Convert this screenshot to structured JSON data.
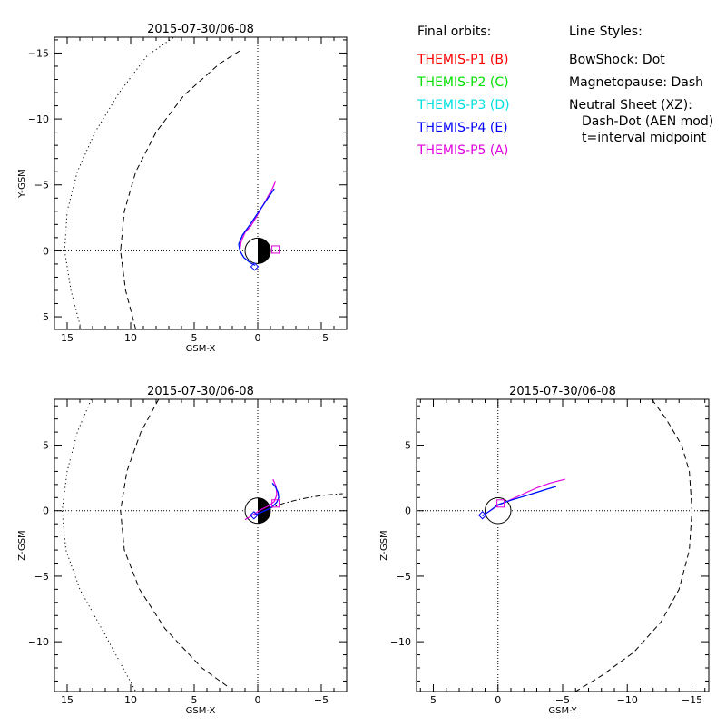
{
  "legend": {
    "orbits_title": "Final orbits:",
    "probes": [
      {
        "label": "THEMIS-P1 (B)",
        "color": "#ff0000"
      },
      {
        "label": "THEMIS-P2 (C)",
        "color": "#00e000"
      },
      {
        "label": "THEMIS-P3 (D)",
        "color": "#00e0e0"
      },
      {
        "label": "THEMIS-P4 (E)",
        "color": "#0000ff"
      },
      {
        "label": "THEMIS-P5 (A)",
        "color": "#e000e0"
      }
    ],
    "styles_title": "Line Styles:",
    "styles": [
      "BowShock: Dot",
      "Magnetopause: Dash",
      "Neutral Sheet (XZ):",
      "Dash-Dot (AEN mod)",
      "t=interval midpoint"
    ]
  },
  "chart_data": [
    {
      "type": "line",
      "title": "2015-07-30/06-08",
      "xlabel": "GSM-X",
      "ylabel": "Y-GSM",
      "xlim": [
        16,
        -7
      ],
      "ylim": [
        5.96,
        -16.2
      ],
      "xticks": [
        15,
        10,
        5,
        0,
        -5
      ],
      "yticks": [
        -15,
        -10,
        -5,
        0,
        5
      ],
      "xticklabels": [
        "15",
        "10",
        "5",
        "0",
        "−5"
      ],
      "yticklabels": [
        "−15",
        "−10",
        "−5",
        "0",
        "5"
      ],
      "series": [
        {
          "style": "bowshock",
          "color": "#000000",
          "x": [
            13.9,
            14.7,
            15.2,
            15.0,
            14.2,
            12.8,
            10.9,
            8.7,
            6.6
          ],
          "y": [
            5.96,
            3.0,
            0.0,
            -3.0,
            -6.0,
            -9.0,
            -12.0,
            -14.8,
            -16.2
          ]
        },
        {
          "style": "magnetopause",
          "color": "#000000",
          "x": [
            9.6,
            10.4,
            10.8,
            10.5,
            9.6,
            8.0,
            5.8,
            3.0,
            1.2
          ],
          "y": [
            5.96,
            3.0,
            0.0,
            -3.0,
            -6.0,
            -9.0,
            -11.8,
            -14.2,
            -15.3
          ]
        },
        {
          "name": "THEMIS-P5 (A)",
          "color": "#e000e0",
          "x": [
            1.4,
            1.3,
            1.0,
            0.6,
            0.15,
            -0.5,
            -1.2,
            -1.4
          ],
          "y": [
            -0.1,
            -0.7,
            -1.4,
            -1.8,
            -2.5,
            -3.6,
            -4.8,
            -5.3
          ]
        },
        {
          "name": "THEMIS-P3 (D)",
          "color": "#00e0e0",
          "x": [
            0.2,
            0.6,
            1.1,
            1.4,
            1.5,
            1.2,
            0.6,
            -0.1,
            -0.8,
            -1.3
          ],
          "y": [
            1.1,
            0.9,
            0.5,
            0.0,
            -0.5,
            -1.2,
            -2.0,
            -3.0,
            -4.0,
            -4.7
          ]
        },
        {
          "name": "THEMIS-P4 (E)",
          "color": "#0000ff",
          "x": [
            0.2,
            0.6,
            1.1,
            1.4,
            1.5,
            1.2,
            0.6,
            -0.1,
            -0.8,
            -1.3
          ],
          "y": [
            1.1,
            0.9,
            0.5,
            0.0,
            -0.5,
            -1.2,
            -2.0,
            -3.0,
            -4.0,
            -4.7
          ]
        }
      ],
      "markers": [
        {
          "shape": "diamond",
          "color": "#0000ff",
          "x": 0.25,
          "y": 1.2
        },
        {
          "shape": "square",
          "color": "#e000e0",
          "x": -1.4,
          "y": -0.1
        }
      ]
    },
    {
      "type": "line",
      "title": "2015-07-30/06-08",
      "xlabel": "GSM-X",
      "ylabel": "Z-GSM",
      "xlim": [
        16,
        -7
      ],
      "ylim": [
        -13.8,
        8.5
      ],
      "xticks": [
        15,
        10,
        5,
        0,
        -5
      ],
      "yticks": [
        5,
        0,
        -5,
        -10
      ],
      "xticklabels": [
        "15",
        "10",
        "5",
        "0",
        "−5"
      ],
      "yticklabels": [
        "5",
        "0",
        "−5",
        "−10"
      ],
      "series": [
        {
          "style": "bowshock",
          "color": "#000000",
          "x": [
            13.1,
            14.2,
            15.0,
            15.4,
            15.1,
            14.0,
            12.0,
            9.6
          ],
          "y": [
            8.5,
            6.0,
            3.0,
            0.0,
            -3.0,
            -6.0,
            -9.5,
            -13.8
          ]
        },
        {
          "style": "magnetopause",
          "color": "#000000",
          "x": [
            7.8,
            9.2,
            10.3,
            10.8,
            10.5,
            9.3,
            7.3,
            4.4,
            2.4
          ],
          "y": [
            8.5,
            6.0,
            3.0,
            0.0,
            -3.0,
            -6.0,
            -9.0,
            -12.0,
            -13.4
          ]
        },
        {
          "style": "neutral_sheet",
          "color": "#000000",
          "x": [
            0.0,
            -1.0,
            -2.0,
            -3.0,
            -4.0,
            -5.0,
            -6.0,
            -6.7
          ],
          "y": [
            -0.4,
            0.2,
            0.55,
            0.8,
            1.0,
            1.15,
            1.25,
            1.3
          ]
        },
        {
          "name": "THEMIS-P5 (A)",
          "color": "#e000e0",
          "x": [
            1.0,
            0.6,
            0.2,
            -0.3,
            -0.9,
            -1.3,
            -1.5,
            -1.45,
            -1.2
          ],
          "y": [
            -0.7,
            -0.45,
            -0.2,
            0.1,
            0.4,
            0.7,
            1.2,
            1.8,
            2.4
          ]
        },
        {
          "name": "THEMIS-P3 (D)",
          "color": "#00e0e0",
          "x": [
            0.3,
            -0.2,
            -0.8,
            -1.2,
            -1.5,
            -1.65,
            -1.6,
            -1.4,
            -1.15
          ],
          "y": [
            -0.35,
            -0.15,
            0.1,
            0.35,
            0.65,
            1.0,
            1.4,
            1.8,
            2.1
          ]
        },
        {
          "name": "THEMIS-P4 (E)",
          "color": "#0000ff",
          "x": [
            0.3,
            -0.2,
            -0.8,
            -1.2,
            -1.5,
            -1.65,
            -1.6,
            -1.4,
            -1.15
          ],
          "y": [
            -0.35,
            -0.15,
            0.1,
            0.35,
            0.65,
            1.0,
            1.4,
            1.8,
            2.1
          ]
        }
      ],
      "markers": [
        {
          "shape": "diamond",
          "color": "#0000ff",
          "x": 0.3,
          "y": -0.35
        },
        {
          "shape": "square",
          "color": "#e000e0",
          "x": -1.4,
          "y": 0.55
        }
      ]
    },
    {
      "type": "line",
      "title": "2015-07-30/06-08",
      "xlabel": "GSM-Y",
      "ylabel": "Z-GSM",
      "xlim": [
        6.3,
        -16.3
      ],
      "ylim": [
        -13.8,
        8.5
      ],
      "xticks": [
        5,
        0,
        -5,
        -10,
        -15
      ],
      "yticks": [
        5,
        0,
        -5,
        -10
      ],
      "xticklabels": [
        "5",
        "0",
        "−5",
        "−10",
        "−15"
      ],
      "yticklabels": [
        "5",
        "0",
        "−5",
        "−10"
      ],
      "series": [
        {
          "style": "magnetopause",
          "color": "#000000",
          "x": [
            -11.9,
            -13.0,
            -14.2,
            -14.8,
            -15.0,
            -14.8,
            -14.0,
            -12.6,
            -10.5,
            -8.0,
            -6.0
          ],
          "y": [
            8.5,
            7.0,
            5.0,
            3.0,
            0.0,
            -3.0,
            -6.0,
            -8.5,
            -10.8,
            -12.6,
            -13.8
          ]
        },
        {
          "name": "THEMIS-P5 (A)",
          "color": "#e000e0",
          "x": [
            1.15,
            0.6,
            0.0,
            -1.0,
            -2.0,
            -3.0,
            -4.0,
            -5.2
          ],
          "y": [
            -0.35,
            0.0,
            0.4,
            0.85,
            1.3,
            1.75,
            2.1,
            2.4
          ]
        },
        {
          "name": "THEMIS-P3 (D)",
          "color": "#00e0e0",
          "x": [
            1.2,
            0.6,
            0.0,
            -1.0,
            -2.0,
            -3.0,
            -3.8,
            -4.5
          ],
          "y": [
            -0.4,
            0.0,
            0.45,
            0.8,
            1.1,
            1.4,
            1.65,
            1.85
          ]
        },
        {
          "name": "THEMIS-P4 (E)",
          "color": "#0000ff",
          "x": [
            1.2,
            0.6,
            0.0,
            -1.0,
            -2.0,
            -3.0,
            -3.8,
            -4.5
          ],
          "y": [
            -0.4,
            0.0,
            0.45,
            0.8,
            1.1,
            1.4,
            1.65,
            1.85
          ]
        }
      ],
      "markers": [
        {
          "shape": "diamond",
          "color": "#0000ff",
          "x": 1.2,
          "y": -0.35
        },
        {
          "shape": "square",
          "color": "#e000e0",
          "x": -0.2,
          "y": 0.55
        }
      ]
    }
  ]
}
